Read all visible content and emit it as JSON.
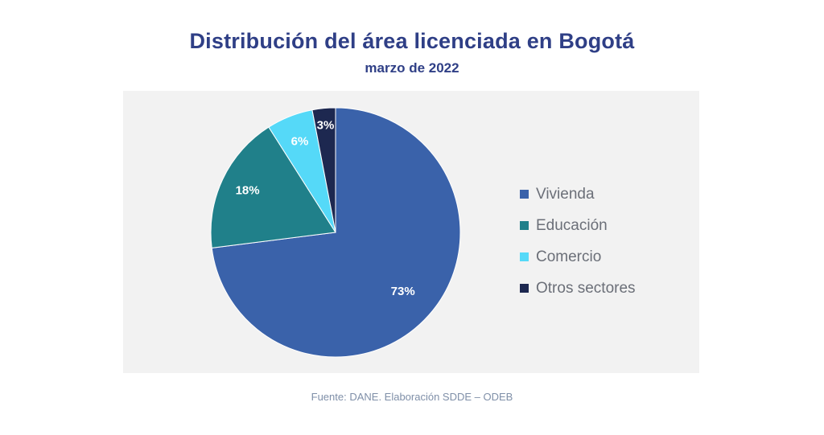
{
  "chart_data": {
    "type": "pie",
    "title": "Distribución del área licenciada en Bogotá",
    "subtitle": "marzo de 2022",
    "slices": [
      {
        "name": "Vivienda",
        "value": 73,
        "label": "73%",
        "color": "#3a62aa"
      },
      {
        "name": "Educación",
        "value": 18,
        "label": "18%",
        "color": "#20808a"
      },
      {
        "name": "Comercio",
        "value": 6,
        "label": "6%",
        "color": "#55d9f8"
      },
      {
        "name": "Otros sectores",
        "value": 3,
        "label": "3%",
        "color": "#1d2850"
      }
    ],
    "legend_position": "right"
  },
  "source": "Fuente: DANE. Elaboración SDDE – ODEB"
}
